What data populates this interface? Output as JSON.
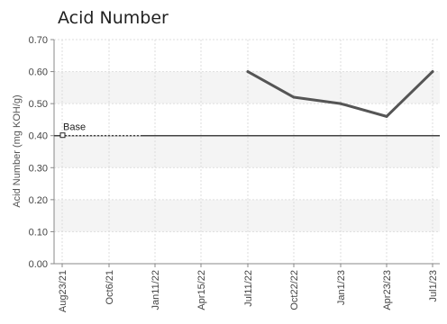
{
  "chart_data": {
    "type": "line",
    "title": "Acid Number",
    "xlabel": "",
    "ylabel": "Acid Number (mg KOH/g)",
    "ylim": [
      0,
      0.7
    ],
    "yticks": [
      "0.00",
      "0.10",
      "0.20",
      "0.30",
      "0.40",
      "0.50",
      "0.60",
      "0.70"
    ],
    "x_tick_labels": [
      "Aug23/21",
      "Oct6/21",
      "Jan11/22",
      "Apr15/22",
      "Jul11/22",
      "Oct22/22",
      "Jan1/23",
      "Apr23/23",
      "Jul1/23"
    ],
    "series": [
      {
        "name": "",
        "x": [
          "Jul11/22",
          "Oct22/22",
          "Jan1/23",
          "Apr23/23",
          "Jul1/23"
        ],
        "values": [
          0.6,
          0.52,
          0.5,
          0.46,
          0.6
        ],
        "color": "#555555"
      }
    ],
    "baseline": {
      "label": "Base",
      "value": 0.4,
      "color": "#444444"
    },
    "grid": "alternating horizontal bands"
  }
}
